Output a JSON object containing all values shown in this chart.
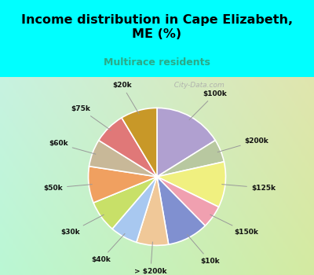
{
  "title": "Income distribution in Cape Elizabeth,\nME (%)",
  "subtitle": "Multirace residents",
  "title_color": "#000000",
  "subtitle_color": "#2aaa88",
  "background_top": "#00ffff",
  "watermark": "  City-Data.com",
  "labels": [
    "$100k",
    "$200k",
    "$125k",
    "$150k",
    "$10k",
    "> $200k",
    "$40k",
    "$30k",
    "$50k",
    "$60k",
    "$75k",
    "$20k"
  ],
  "values": [
    15,
    5,
    10,
    5,
    9,
    7,
    6,
    7,
    8,
    6,
    7,
    8
  ],
  "colors": [
    "#b0a0d0",
    "#b8c8a0",
    "#f0f080",
    "#f0a0b0",
    "#8090d0",
    "#f0c898",
    "#a8c8f0",
    "#c8e068",
    "#f0a060",
    "#c8b898",
    "#e07878",
    "#c89828"
  ]
}
